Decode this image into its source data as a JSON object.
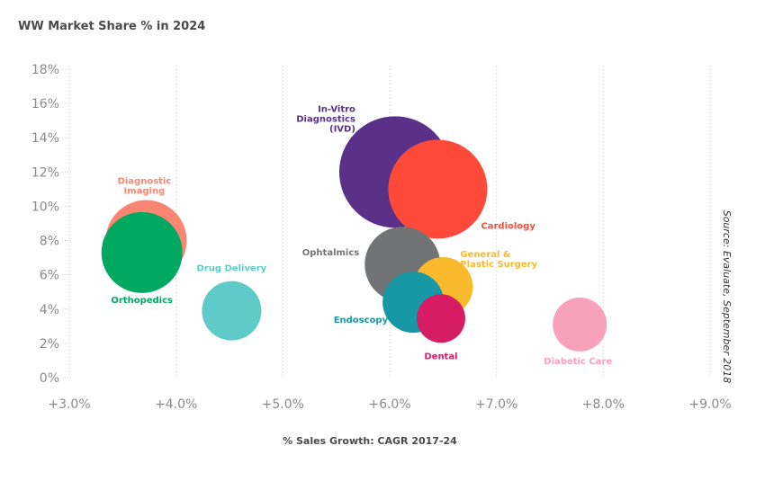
{
  "chart_data": {
    "type": "scatter",
    "title": "WW Market Share % in 2024",
    "xlabel": "% Sales Growth: CAGR 2017-24",
    "ylabel": "",
    "source": "Source: Evaluate, September 2018",
    "xlim": [
      3.0,
      9.0
    ],
    "ylim": [
      0,
      18
    ],
    "x_ticks": [
      "+3.0%",
      "+4.0%",
      "+5.0%",
      "+6.0%",
      "+7.0%",
      "+8.0%",
      "+9.0%"
    ],
    "y_ticks": [
      "0%",
      "2%",
      "4%",
      "6%",
      "8%",
      "10%",
      "12%",
      "14%",
      "16%",
      "18%"
    ],
    "grid": "vertical-dotted",
    "series": [
      {
        "name": "Diagnostic Imaging",
        "x": 3.72,
        "y": 8.0,
        "size": 45,
        "color": "#f98672"
      },
      {
        "name": "Orthopedics",
        "x": 3.68,
        "y": 7.3,
        "size": 45,
        "color": "#00a861"
      },
      {
        "name": "Drug Delivery",
        "x": 4.52,
        "y": 3.9,
        "size": 33,
        "color": "#5ecbc8"
      },
      {
        "name": "In-Vitro Diagnostics (IVD)",
        "x": 6.05,
        "y": 12.0,
        "size": 62,
        "color": "#5a3089"
      },
      {
        "name": "Cardiology",
        "x": 6.45,
        "y": 11.0,
        "size": 55,
        "color": "#ff4a3a"
      },
      {
        "name": "Ophtalmics",
        "x": 6.12,
        "y": 6.6,
        "size": 42,
        "color": "#717375"
      },
      {
        "name": "General & Plastic Surgery",
        "x": 6.5,
        "y": 5.3,
        "size": 33,
        "color": "#f8b92d"
      },
      {
        "name": "Endoscopy",
        "x": 6.22,
        "y": 4.4,
        "size": 34,
        "color": "#1898a5"
      },
      {
        "name": "Dental",
        "x": 6.48,
        "y": 3.45,
        "size": 27,
        "color": "#d71c66"
      },
      {
        "name": "Diabetic Care",
        "x": 7.78,
        "y": 3.1,
        "size": 30,
        "color": "#f8a1bc"
      }
    ]
  }
}
